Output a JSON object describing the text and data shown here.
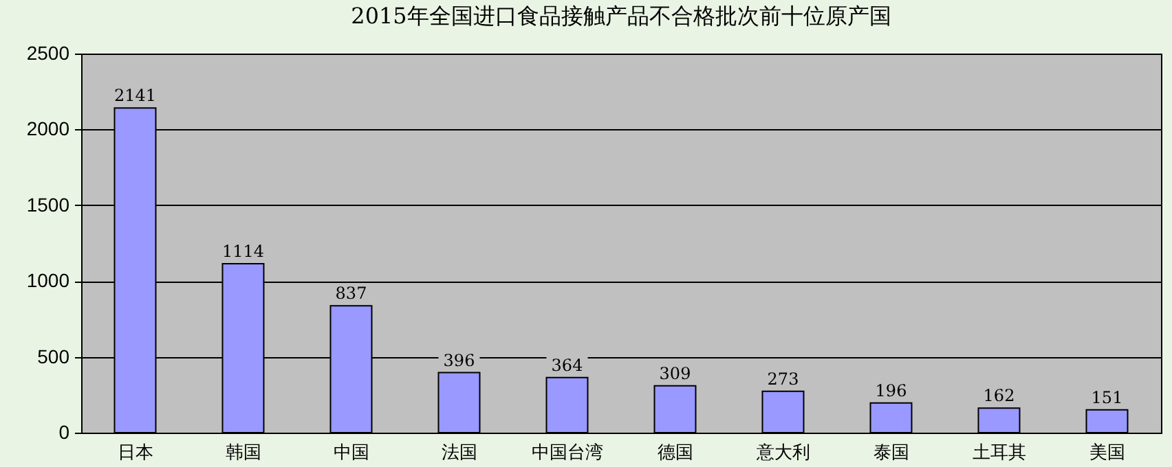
{
  "chart_data": {
    "type": "bar",
    "title": "2015年全国进口食品接触产品不合格批次前十位原产国",
    "categories": [
      "日本",
      "韩国",
      "中国",
      "法国",
      "中国台湾",
      "德国",
      "意大利",
      "泰国",
      "土耳其",
      "美国"
    ],
    "values": [
      2141,
      1114,
      837,
      396,
      364,
      309,
      273,
      196,
      162,
      151
    ],
    "color": "#9999ff",
    "ylim": [
      0,
      2500
    ],
    "yticks": [
      0,
      500,
      1000,
      1500,
      2000,
      2500
    ],
    "grid": "y",
    "data_labels": true
  }
}
